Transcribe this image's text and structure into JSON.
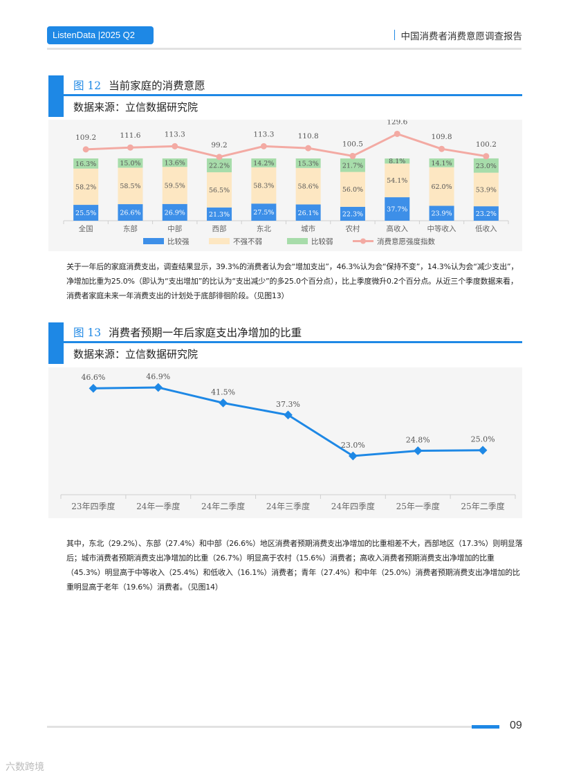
{
  "header": {
    "badge": "ListenData |2025 Q2",
    "title": "中国消费者消费意愿调查报告"
  },
  "figure12": {
    "num": "图 12",
    "title": "当前家庭的消费意愿",
    "source": "数据来源：立信数据研究院",
    "chart_data": {
      "type": "bar",
      "stacked": true,
      "categories": [
        "全国",
        "东部",
        "中部",
        "西部",
        "东北",
        "城市",
        "农村",
        "高收入",
        "中等收入",
        "低收入"
      ],
      "series": [
        {
          "name": "比较强",
          "color": "#3d8fe8",
          "values": [
            "25.5%",
            "26.6%",
            "26.9%",
            "21.3%",
            "27.5%",
            "26.1%",
            "22.3%",
            "37.7%",
            "23.9%",
            "23.2%"
          ]
        },
        {
          "name": "不强不弱",
          "color": "#fde7c2",
          "values": [
            "58.2%",
            "58.5%",
            "59.5%",
            "56.5%",
            "58.3%",
            "58.6%",
            "56.0%",
            "54.1%",
            "62.0%",
            "53.9%"
          ]
        },
        {
          "name": "比较弱",
          "color": "#a7dcaa",
          "values": [
            "16.3%",
            "15.0%",
            "13.6%",
            "22.2%",
            "14.2%",
            "15.3%",
            "21.7%",
            "8.1%",
            "14.1%",
            "23.0%"
          ]
        }
      ],
      "index_series": {
        "name": "消费意愿强度指数",
        "color": "#f3aaa3",
        "values": [
          "109.2",
          "111.6",
          "113.3",
          "99.2",
          "113.3",
          "110.8",
          "100.5",
          "129.6",
          "109.8",
          "100.2"
        ]
      }
    }
  },
  "para1": "关于一年后的家庭消费支出，调查结果显示，39.3%的消费者认为会“增加支出”，46.3%认为会“保持不变”，14.3%认为会“减少支出”，净增加比重为25.0%（即认为“支出增加”的比认为“支出减少”的多25.0个百分点），比上季度微升0.2个百分点。从近三个季度数据来看，消费者家庭未来一年消费支出的计划处于底部徘徊阶段。（见图13）",
  "figure13": {
    "num": "图 13",
    "title": "消费者预期一年后家庭支出净增加的比重",
    "source": "数据来源：立信数据研究院",
    "chart_data": {
      "type": "line",
      "categories": [
        "23年四季度",
        "24年一季度",
        "24年二季度",
        "24年三季度",
        "24年四季度",
        "25年一季度",
        "25年二季度"
      ],
      "values": [
        46.6,
        46.9,
        41.5,
        37.3,
        23.0,
        24.8,
        25.0
      ],
      "labels": [
        "46.6%",
        "46.9%",
        "41.5%",
        "37.3%",
        "23.0%",
        "24.8%",
        "25.0%"
      ],
      "color": "#1e88e5"
    }
  },
  "para2": "其中，东北（29.2%）、东部（27.4%）和中部（26.6%）地区消费者预期消费支出净增加的比重相差不大，西部地区（17.3%）则明显落后；城市消费者预期消费支出净增加的比重（26.7%）明显高于农村（15.6%）消费者；高收入消费者预期消费支出净增加的比重（45.3%）明显高于中等收入（25.4%）和低收入（16.1%）消费者；青年（27.4%）和中年（25.0%）消费者预期消费支出净增加的比重明显高于老年（19.6%）消费者。（见图14）",
  "footer": {
    "page": "09",
    "watermark": "六数跨境"
  }
}
